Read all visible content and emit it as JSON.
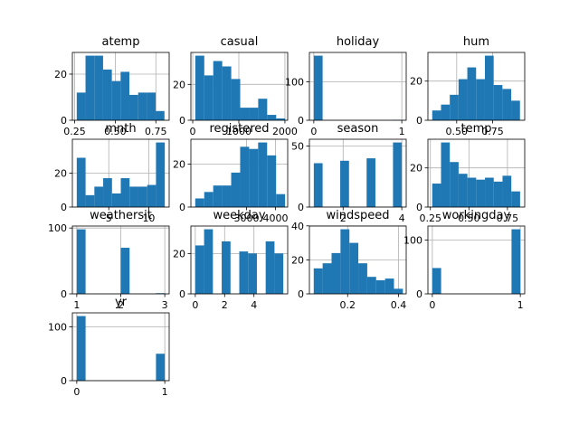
{
  "chart_data": [
    {
      "id": "atemp",
      "type": "bar",
      "title": "atemp",
      "bar_color": "#1f77b4",
      "xlim": [
        0.236,
        0.832
      ],
      "ylim": [
        0,
        29.4
      ],
      "bins": [
        [
          0.263,
          0.317,
          12
        ],
        [
          0.317,
          0.371,
          28
        ],
        [
          0.371,
          0.425,
          28
        ],
        [
          0.425,
          0.479,
          22
        ],
        [
          0.479,
          0.533,
          17
        ],
        [
          0.533,
          0.587,
          21
        ],
        [
          0.587,
          0.641,
          11
        ],
        [
          0.641,
          0.695,
          12
        ],
        [
          0.695,
          0.749,
          12
        ],
        [
          0.749,
          0.803,
          4
        ]
      ],
      "xticks": [
        {
          "v": 0.25,
          "label": "0.25"
        },
        {
          "v": 0.5,
          "label": "0.50"
        },
        {
          "v": 0.75,
          "label": "0.75"
        }
      ],
      "yticks": [
        {
          "v": 0,
          "label": "0"
        },
        {
          "v": 20,
          "label": "20"
        }
      ]
    },
    {
      "id": "casual",
      "type": "bar",
      "title": "casual",
      "bar_color": "#1f77b4",
      "xlim": [
        -40,
        2060
      ],
      "ylim": [
        0,
        37.8
      ],
      "bins": [
        [
          55,
          250,
          36
        ],
        [
          250,
          445,
          25
        ],
        [
          445,
          640,
          33
        ],
        [
          640,
          835,
          30
        ],
        [
          835,
          1030,
          23
        ],
        [
          1030,
          1225,
          7
        ],
        [
          1225,
          1420,
          7
        ],
        [
          1420,
          1615,
          12
        ],
        [
          1615,
          1810,
          3
        ],
        [
          1810,
          2005,
          1
        ]
      ],
      "xticks": [
        {
          "v": 0,
          "label": "0"
        },
        {
          "v": 1000,
          "label": "1000"
        },
        {
          "v": 2000,
          "label": "2000"
        }
      ],
      "yticks": [
        {
          "v": 0,
          "label": "0"
        },
        {
          "v": 20,
          "label": "20"
        }
      ]
    },
    {
      "id": "holiday",
      "type": "bar",
      "title": "holiday",
      "bar_color": "#1f77b4",
      "xlim": [
        -0.05,
        1.05
      ],
      "ylim": [
        0,
        176.4
      ],
      "bins": [
        [
          0,
          0.1,
          168
        ],
        [
          0.9,
          1,
          1
        ]
      ],
      "xticks": [
        {
          "v": 0,
          "label": "0"
        },
        {
          "v": 1,
          "label": "1"
        }
      ],
      "yticks": [
        {
          "v": 0,
          "label": "0"
        },
        {
          "v": 100,
          "label": "100"
        }
      ]
    },
    {
      "id": "hum",
      "type": "bar",
      "title": "hum",
      "bar_color": "#1f77b4",
      "xlim": [
        0.3,
        0.973
      ],
      "ylim": [
        0,
        34.65
      ],
      "bins": [
        [
          0.33,
          0.391,
          5
        ],
        [
          0.391,
          0.452,
          8
        ],
        [
          0.452,
          0.513,
          13
        ],
        [
          0.513,
          0.574,
          21
        ],
        [
          0.574,
          0.635,
          27
        ],
        [
          0.635,
          0.696,
          21
        ],
        [
          0.696,
          0.757,
          33
        ],
        [
          0.757,
          0.818,
          18
        ],
        [
          0.818,
          0.879,
          16
        ],
        [
          0.879,
          0.94,
          10
        ]
      ],
      "xticks": [
        {
          "v": 0.5,
          "label": "0.50"
        },
        {
          "v": 0.75,
          "label": "0.75"
        }
      ],
      "yticks": [
        {
          "v": 0,
          "label": "0"
        },
        {
          "v": 20,
          "label": "20"
        }
      ]
    },
    {
      "id": "mnth",
      "type": "bar",
      "title": "mnth",
      "bar_color": "#1f77b4",
      "xlim": [
        0.45,
        12.55
      ],
      "ylim": [
        0,
        39.9
      ],
      "bins": [
        [
          1,
          2.1,
          29
        ],
        [
          2.1,
          3.2,
          7
        ],
        [
          3.2,
          4.3,
          12
        ],
        [
          4.3,
          5.4,
          17
        ],
        [
          5.4,
          6.5,
          8
        ],
        [
          6.5,
          7.6,
          17
        ],
        [
          7.6,
          8.7,
          12
        ],
        [
          8.7,
          9.8,
          12
        ],
        [
          9.8,
          10.9,
          13
        ],
        [
          10.9,
          12,
          38
        ]
      ],
      "xticks": [
        {
          "v": 5,
          "label": "5"
        },
        {
          "v": 10,
          "label": "10"
        }
      ],
      "yticks": [
        {
          "v": 0,
          "label": "0"
        },
        {
          "v": 20,
          "label": "20"
        }
      ]
    },
    {
      "id": "registered",
      "type": "bar",
      "title": "registered",
      "bar_color": "#1f77b4",
      "xlim": [
        1080,
        4420
      ],
      "ylim": [
        0,
        31.5
      ],
      "bins": [
        [
          1230,
          1540,
          4
        ],
        [
          1540,
          1850,
          7
        ],
        [
          1850,
          2160,
          10
        ],
        [
          2160,
          2470,
          10
        ],
        [
          2470,
          2780,
          16
        ],
        [
          2780,
          3090,
          28
        ],
        [
          3090,
          3400,
          27
        ],
        [
          3400,
          3710,
          30
        ],
        [
          3710,
          4020,
          24
        ],
        [
          4020,
          4330,
          6
        ]
      ],
      "xticks": [
        {
          "v": 3000,
          "label": "3000"
        },
        {
          "v": 4000,
          "label": "4000"
        }
      ],
      "yticks": [
        {
          "v": 0,
          "label": "0"
        },
        {
          "v": 20,
          "label": "20"
        }
      ]
    },
    {
      "id": "season",
      "type": "bar",
      "title": "season",
      "bar_color": "#1f77b4",
      "xlim": [
        0.85,
        4.15
      ],
      "ylim": [
        0,
        55.65
      ],
      "bins": [
        [
          1,
          1.3,
          36
        ],
        [
          1.9,
          2.2,
          38
        ],
        [
          2.8,
          3.1,
          40
        ],
        [
          3.7,
          4,
          53
        ]
      ],
      "xticks": [
        {
          "v": 2,
          "label": "2"
        },
        {
          "v": 4,
          "label": "4"
        }
      ],
      "yticks": [
        {
          "v": 0,
          "label": "0"
        },
        {
          "v": 50,
          "label": "50"
        }
      ]
    },
    {
      "id": "temp",
      "type": "bar",
      "title": "temp",
      "bar_color": "#1f77b4",
      "xlim": [
        0.234,
        0.862
      ],
      "ylim": [
        0,
        34.65
      ],
      "bins": [
        [
          0.262,
          0.319,
          12
        ],
        [
          0.319,
          0.376,
          33
        ],
        [
          0.376,
          0.433,
          23
        ],
        [
          0.433,
          0.49,
          17
        ],
        [
          0.49,
          0.547,
          15
        ],
        [
          0.547,
          0.604,
          14
        ],
        [
          0.604,
          0.661,
          15
        ],
        [
          0.661,
          0.718,
          13
        ],
        [
          0.718,
          0.775,
          16
        ],
        [
          0.775,
          0.832,
          8
        ]
      ],
      "xticks": [
        {
          "v": 0.25,
          "label": "0.25"
        },
        {
          "v": 0.5,
          "label": "0.50"
        },
        {
          "v": 0.75,
          "label": "0.75"
        }
      ],
      "yticks": [
        {
          "v": 0,
          "label": "0"
        },
        {
          "v": 20,
          "label": "20"
        }
      ]
    },
    {
      "id": "weathersit",
      "type": "bar",
      "title": "weathersit",
      "bar_color": "#1f77b4",
      "xlim": [
        0.9,
        3.1
      ],
      "ylim": [
        0,
        103
      ],
      "bins": [
        [
          1,
          1.2,
          98
        ],
        [
          2,
          2.2,
          70
        ],
        [
          2.8,
          3,
          1
        ]
      ],
      "xticks": [
        {
          "v": 1,
          "label": "1"
        },
        {
          "v": 2,
          "label": "2"
        },
        {
          "v": 3,
          "label": "3"
        }
      ],
      "yticks": [
        {
          "v": 0,
          "label": "0"
        },
        {
          "v": 100,
          "label": "100"
        }
      ]
    },
    {
      "id": "weekday",
      "type": "bar",
      "title": "weekday",
      "bar_color": "#1f77b4",
      "xlim": [
        -0.3,
        6.3
      ],
      "ylim": [
        0,
        33.6
      ],
      "bins": [
        [
          0,
          0.6,
          24
        ],
        [
          0.6,
          1.2,
          32
        ],
        [
          1.8,
          2.4,
          26
        ],
        [
          3,
          3.6,
          21
        ],
        [
          3.6,
          4.2,
          20
        ],
        [
          4.8,
          5.4,
          26
        ],
        [
          5.4,
          6,
          20
        ]
      ],
      "xticks": [
        {
          "v": 0,
          "label": "0"
        },
        {
          "v": 2,
          "label": "2"
        },
        {
          "v": 4,
          "label": "4"
        }
      ],
      "yticks": [
        {
          "v": 0,
          "label": "0"
        },
        {
          "v": 20,
          "label": "20"
        }
      ]
    },
    {
      "id": "windspeed",
      "type": "bar",
      "title": "windspeed",
      "bar_color": "#1f77b4",
      "xlim": [
        0.05,
        0.43
      ],
      "ylim": [
        0,
        39.9
      ],
      "bins": [
        [
          0.067,
          0.102,
          15
        ],
        [
          0.102,
          0.137,
          18
        ],
        [
          0.137,
          0.172,
          24
        ],
        [
          0.172,
          0.207,
          38
        ],
        [
          0.207,
          0.242,
          30
        ],
        [
          0.242,
          0.277,
          18
        ],
        [
          0.277,
          0.312,
          10
        ],
        [
          0.312,
          0.347,
          8
        ],
        [
          0.347,
          0.382,
          9
        ],
        [
          0.382,
          0.417,
          3
        ]
      ],
      "xticks": [
        {
          "v": 0.2,
          "label": "0.2"
        },
        {
          "v": 0.4,
          "label": "0.4"
        }
      ],
      "yticks": [
        {
          "v": 0,
          "label": "0"
        },
        {
          "v": 20,
          "label": "20"
        },
        {
          "v": 40,
          "label": "40"
        }
      ]
    },
    {
      "id": "workingday",
      "type": "bar",
      "title": "workingday",
      "bar_color": "#1f77b4",
      "xlim": [
        -0.05,
        1.05
      ],
      "ylim": [
        0,
        126
      ],
      "bins": [
        [
          0,
          0.1,
          48
        ],
        [
          0.9,
          1,
          120
        ]
      ],
      "xticks": [
        {
          "v": 0,
          "label": "0"
        },
        {
          "v": 1,
          "label": "1"
        }
      ],
      "yticks": [
        {
          "v": 0,
          "label": "0"
        },
        {
          "v": 100,
          "label": "100"
        }
      ]
    },
    {
      "id": "yr",
      "type": "bar",
      "title": "yr",
      "bar_color": "#1f77b4",
      "xlim": [
        -0.05,
        1.05
      ],
      "ylim": [
        0,
        126
      ],
      "bins": [
        [
          0,
          0.1,
          120
        ],
        [
          0.9,
          1,
          50
        ]
      ],
      "xticks": [
        {
          "v": 0,
          "label": "0"
        },
        {
          "v": 1,
          "label": "1"
        }
      ],
      "yticks": [
        {
          "v": 0,
          "label": "0"
        },
        {
          "v": 100,
          "label": "100"
        }
      ]
    }
  ]
}
